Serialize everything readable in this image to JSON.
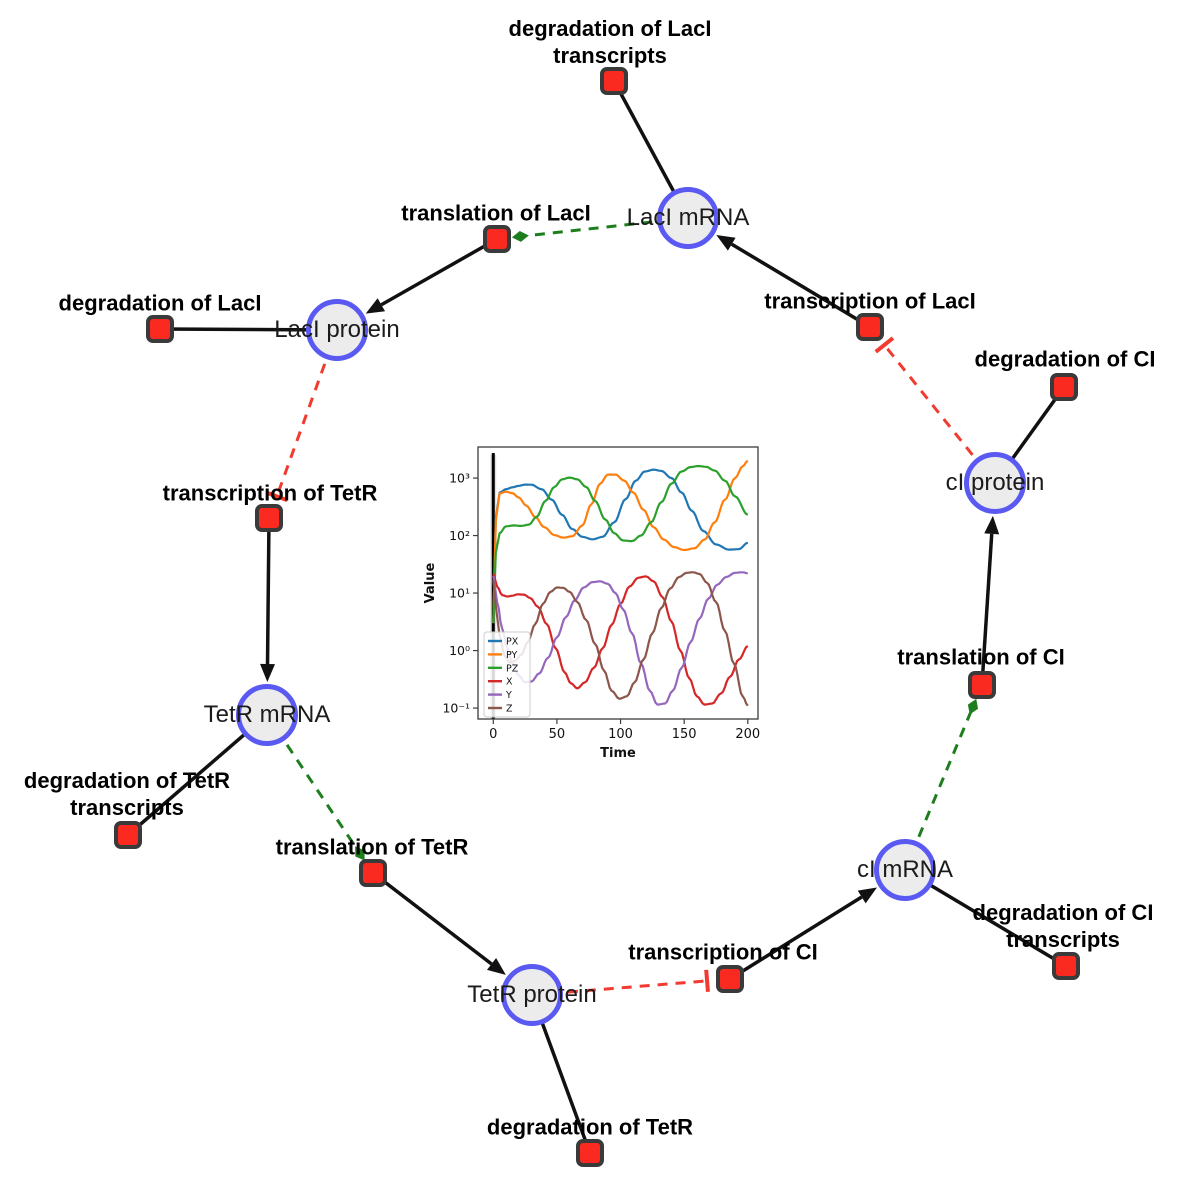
{
  "diagram": {
    "species": [
      {
        "label": "LacI mRNA"
      },
      {
        "label": "LacI protein"
      },
      {
        "label": "TetR mRNA"
      },
      {
        "label": "TetR protein"
      },
      {
        "label": "cI mRNA"
      },
      {
        "label": "cI protein"
      }
    ],
    "reactions": [
      {
        "label": "degradation of LacI transcripts"
      },
      {
        "label": "translation of LacI"
      },
      {
        "label": "degradation of LacI"
      },
      {
        "label": "transcription of LacI"
      },
      {
        "label": "degradation of CI"
      },
      {
        "label": "transcription of TetR"
      },
      {
        "label": "degradation of TetR transcripts"
      },
      {
        "label": "translation of TetR"
      },
      {
        "label": "translation of CI"
      },
      {
        "label": "transcription of CI"
      },
      {
        "label": "degradation of TetR"
      },
      {
        "label": "degradation of CI transcripts"
      }
    ],
    "colors": {
      "species_fill": "#ececec",
      "species_border": "#5a5af2",
      "reaction_fill": "#fb2a20",
      "reaction_border": "#3a3a3a",
      "edge": "#111111",
      "activation": "#1e7e1e",
      "inhibition": "#f23b30"
    }
  },
  "chart_data": {
    "type": "line",
    "title": "",
    "xlabel": "Time",
    "ylabel": "Value",
    "yscale": "log",
    "xlim": [
      -12,
      208
    ],
    "ylim_log10": [
      -1.19,
      3.54
    ],
    "xticks": [
      0,
      50,
      100,
      150,
      200
    ],
    "ytick_exponents": [
      -1,
      0,
      1,
      2,
      3
    ],
    "ytick_labels": [
      "10⁻¹",
      "10⁰",
      "10¹",
      "10²",
      "10³"
    ],
    "legend_position": "lower left",
    "grid": false,
    "vline_x": 0,
    "series": [
      {
        "name": "PX",
        "color": "#1f77b4",
        "x": [
          0,
          2,
          5,
          10,
          15,
          20,
          25,
          30,
          38,
          46,
          54,
          62,
          70,
          78,
          86,
          95,
          104,
          112,
          119,
          126,
          132,
          140,
          148,
          156,
          165,
          175,
          185,
          193,
          200
        ],
        "y": [
          3,
          200,
          560,
          640,
          690,
          730,
          770,
          765,
          640,
          420,
          230,
          130,
          95,
          86,
          95,
          170,
          430,
          900,
          1300,
          1400,
          1330,
          1000,
          560,
          270,
          120,
          70,
          57,
          58,
          75
        ]
      },
      {
        "name": "PY",
        "color": "#ff7f0e",
        "x": [
          0,
          2,
          5,
          10,
          15,
          20,
          26,
          33,
          40,
          48,
          55,
          62,
          70,
          77,
          84,
          90,
          96,
          103,
          110,
          118,
          126,
          134,
          142,
          150,
          158,
          166,
          174,
          182,
          190,
          196,
          200
        ],
        "y": [
          3,
          180,
          540,
          580,
          545,
          460,
          330,
          210,
          140,
          102,
          92,
          97,
          150,
          350,
          800,
          1150,
          1150,
          900,
          560,
          280,
          140,
          85,
          63,
          56,
          60,
          85,
          170,
          420,
          1000,
          1600,
          2000
        ]
      },
      {
        "name": "PZ",
        "color": "#2ca02c",
        "x": [
          0,
          2,
          5,
          10,
          16,
          22,
          28,
          34,
          41,
          48,
          54,
          60,
          66,
          73,
          80,
          88,
          95,
          102,
          109,
          116,
          124,
          132,
          140,
          148,
          155,
          161,
          167,
          174,
          182,
          190,
          200
        ],
        "y": [
          3,
          50,
          110,
          145,
          150,
          147,
          155,
          210,
          400,
          700,
          950,
          1020,
          950,
          700,
          400,
          190,
          110,
          82,
          80,
          100,
          170,
          380,
          800,
          1300,
          1550,
          1620,
          1570,
          1350,
          900,
          480,
          230
        ]
      },
      {
        "name": "X",
        "color": "#d62728",
        "x": [
          0,
          3,
          7,
          11,
          15,
          19,
          24,
          29,
          35,
          42,
          49,
          56,
          61,
          66,
          72,
          79,
          86,
          93,
          100,
          107,
          114,
          120,
          126,
          133,
          140,
          147,
          154,
          160,
          166,
          172,
          179,
          186,
          193,
          200
        ],
        "y": [
          22,
          13,
          9.2,
          8.7,
          9.0,
          9.5,
          9.4,
          8.2,
          5.8,
          2.9,
          1.1,
          0.42,
          0.27,
          0.22,
          0.28,
          0.5,
          1.1,
          2.8,
          6.5,
          13,
          18.5,
          19.5,
          16,
          8.5,
          3.2,
          1.0,
          0.33,
          0.16,
          0.115,
          0.12,
          0.18,
          0.35,
          0.7,
          1.2
        ]
      },
      {
        "name": "Y",
        "color": "#9467bd",
        "x": [
          0,
          3,
          7,
          11,
          15,
          20,
          25,
          30,
          36,
          43,
          50,
          57,
          64,
          71,
          78,
          84,
          90,
          96,
          102,
          109,
          116,
          123,
          129,
          135,
          141,
          148,
          155,
          162,
          169,
          176,
          183,
          190,
          196,
          200
        ],
        "y": [
          20,
          7,
          2.4,
          1.1,
          0.6,
          0.37,
          0.28,
          0.29,
          0.4,
          0.75,
          1.7,
          3.8,
          7.5,
          12.5,
          15.5,
          16,
          14.5,
          10,
          5.2,
          2.0,
          0.6,
          0.2,
          0.115,
          0.12,
          0.2,
          0.5,
          1.4,
          3.6,
          8,
          14,
          19,
          22.5,
          23,
          22
        ]
      },
      {
        "name": "Z",
        "color": "#8c564b",
        "x": [
          0,
          2,
          5,
          9,
          13,
          17,
          22,
          27,
          33,
          39,
          45,
          50,
          55,
          60,
          66,
          73,
          80,
          87,
          93,
          99,
          105,
          111,
          118,
          125,
          132,
          139,
          146,
          152,
          157,
          162,
          168,
          175,
          182,
          189,
          196,
          200
        ],
        "y": [
          17,
          6,
          1.8,
          0.8,
          0.62,
          0.66,
          0.85,
          1.4,
          2.9,
          6.5,
          10.5,
          12.5,
          12.3,
          10.5,
          7,
          3.4,
          1.3,
          0.45,
          0.2,
          0.145,
          0.16,
          0.28,
          0.7,
          2.0,
          5.5,
          12,
          19,
          22.5,
          23,
          21.5,
          15,
          7,
          2.2,
          0.6,
          0.16,
          0.11
        ]
      }
    ]
  }
}
